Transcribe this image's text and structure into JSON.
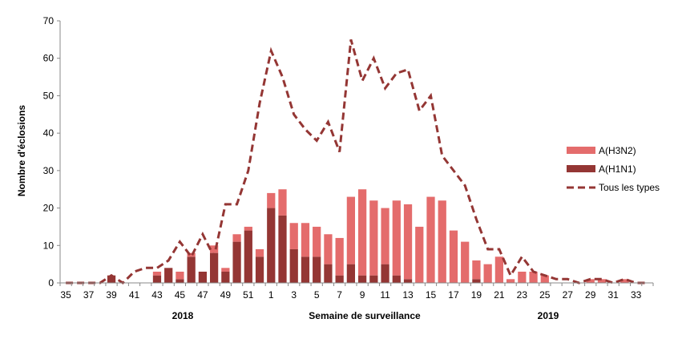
{
  "chart_data": {
    "type": "bar",
    "stacked": true,
    "ylabel": "Nombre d'éclosions",
    "xlabel": "Semaine de surveillance",
    "ylim": [
      0,
      70
    ],
    "yticks": [
      0,
      10,
      20,
      30,
      40,
      50,
      60,
      70
    ],
    "grid": false,
    "legend_position": "right",
    "year_labels": [
      "2018",
      "2019"
    ],
    "categories": [
      "35",
      "36",
      "37",
      "38",
      "39",
      "40",
      "41",
      "42",
      "43",
      "44",
      "45",
      "46",
      "47",
      "48",
      "49",
      "50",
      "51",
      "52",
      "1",
      "2",
      "3",
      "4",
      "5",
      "6",
      "7",
      "8",
      "9",
      "10",
      "11",
      "12",
      "13",
      "14",
      "15",
      "16",
      "17",
      "18",
      "19",
      "20",
      "21",
      "22",
      "23",
      "24",
      "25",
      "26",
      "27",
      "28",
      "29",
      "30",
      "31",
      "32",
      "33",
      "34"
    ],
    "tick_labels": [
      "35",
      "",
      "37",
      "",
      "39",
      "",
      "41",
      "",
      "43",
      "",
      "45",
      "",
      "47",
      "",
      "49",
      "",
      "51",
      "",
      "1",
      "",
      "3",
      "",
      "5",
      "",
      "7",
      "",
      "9",
      "",
      "11",
      "",
      "13",
      "",
      "15",
      "",
      "17",
      "",
      "19",
      "",
      "21",
      "",
      "23",
      "",
      "25",
      "",
      "27",
      "",
      "29",
      "",
      "31",
      "",
      "33",
      ""
    ],
    "series": [
      {
        "name": "A(H1N1)",
        "kind": "bar",
        "color": "#943634",
        "values": [
          0,
          0,
          0,
          0,
          2,
          0,
          0,
          0,
          2,
          4,
          1,
          7,
          3,
          8,
          3,
          11,
          14,
          7,
          20,
          18,
          9,
          7,
          7,
          5,
          2,
          5,
          2,
          2,
          5,
          2,
          1,
          0,
          0,
          0,
          0,
          0,
          1,
          0,
          0,
          0,
          0,
          0,
          0,
          0,
          0,
          0,
          0,
          0,
          0,
          0,
          0,
          0
        ]
      },
      {
        "name": "A(H3N2)",
        "kind": "bar",
        "color": "#e46c6c",
        "values": [
          0,
          0,
          0,
          0,
          0,
          0,
          0,
          0,
          1,
          0,
          2,
          1,
          0,
          2,
          1,
          2,
          1,
          2,
          4,
          7,
          7,
          9,
          8,
          8,
          10,
          18,
          23,
          20,
          15,
          20,
          20,
          15,
          23,
          22,
          14,
          11,
          5,
          5,
          7,
          1,
          3,
          3,
          2,
          0,
          0,
          0,
          1,
          1,
          0,
          1,
          0,
          0
        ]
      },
      {
        "name": "Tous les types",
        "kind": "line",
        "color": "#943634",
        "dashed": true,
        "values": [
          0,
          0,
          0,
          0,
          2,
          0,
          3,
          4,
          4,
          6,
          11,
          7,
          13,
          7,
          21,
          21,
          30,
          48,
          62,
          55,
          45,
          41,
          38,
          43,
          35,
          65,
          54,
          60,
          52,
          56,
          57,
          46,
          50,
          34,
          30,
          26,
          17,
          9,
          9,
          2,
          7,
          3,
          2,
          1,
          1,
          0,
          1,
          1,
          0,
          1,
          0,
          0
        ]
      }
    ]
  }
}
